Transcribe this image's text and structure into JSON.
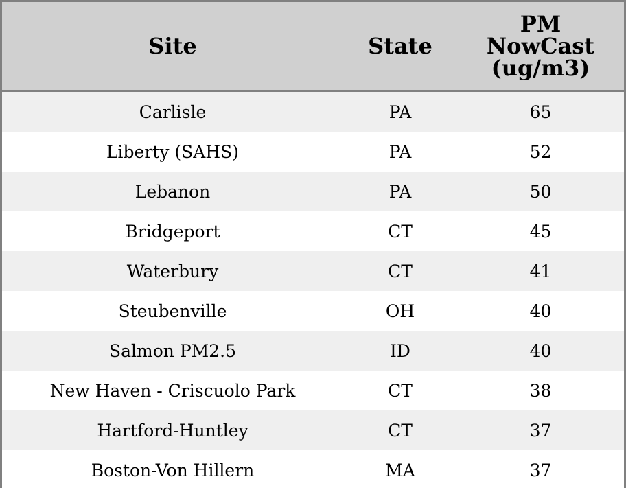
{
  "chart_data": {
    "type": "table",
    "columns": [
      "Site",
      "State",
      "PM NowCast (ug/m3)"
    ],
    "rows": [
      [
        "Carlisle",
        "PA",
        "65"
      ],
      [
        "Liberty (SAHS)",
        "PA",
        "52"
      ],
      [
        "Lebanon",
        "PA",
        "50"
      ],
      [
        "Bridgeport",
        "CT",
        "45"
      ],
      [
        "Waterbury",
        "CT",
        "41"
      ],
      [
        "Steubenville",
        "OH",
        "40"
      ],
      [
        "Salmon PM2.5",
        "ID",
        "40"
      ],
      [
        "New Haven - Criscuolo Park",
        "CT",
        "38"
      ],
      [
        "Hartford-Huntley",
        "CT",
        "37"
      ],
      [
        "Boston-Von Hillern",
        "MA",
        "37"
      ]
    ],
    "colors": {
      "header_bg": "#d0d0d0",
      "stripe": "#efefef",
      "border": "#808080"
    }
  }
}
